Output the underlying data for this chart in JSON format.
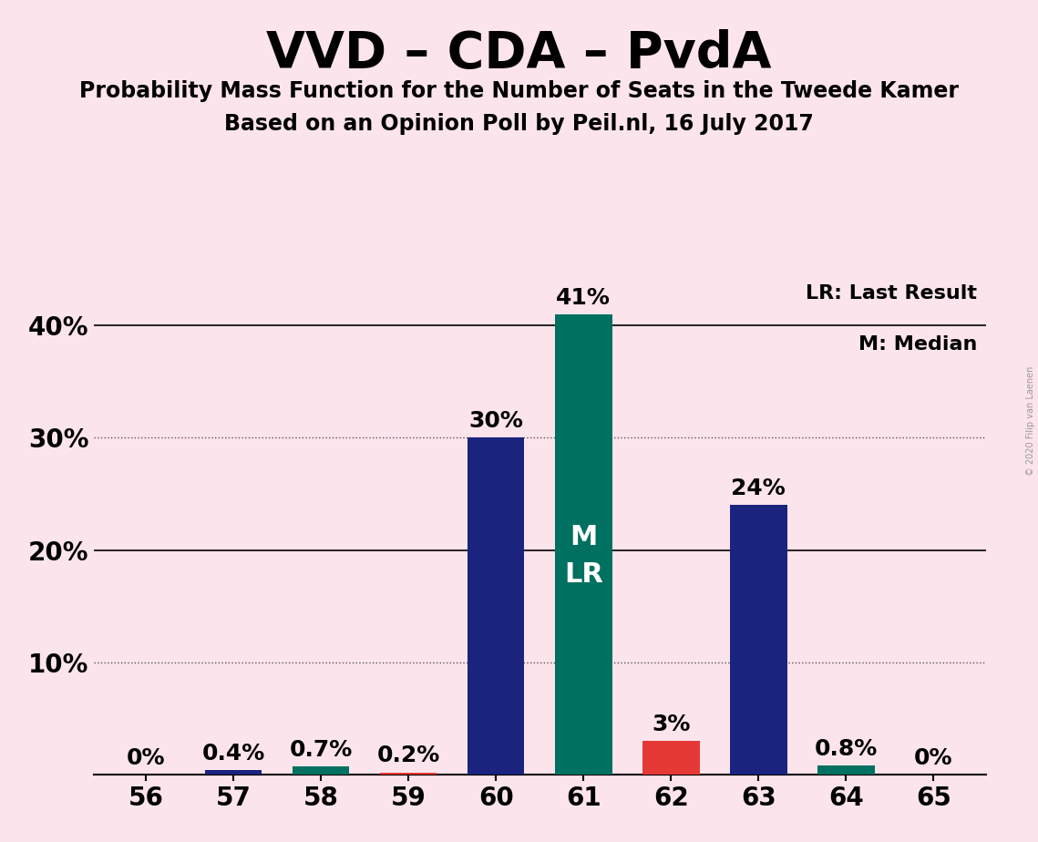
{
  "title": "VVD – CDA – PvdA",
  "subtitle1": "Probability Mass Function for the Number of Seats in the Tweede Kamer",
  "subtitle2": "Based on an Opinion Poll by Peil.nl, 16 July 2017",
  "copyright": "© 2020 Filip van Laenen",
  "categories": [
    56,
    57,
    58,
    59,
    60,
    61,
    62,
    63,
    64,
    65
  ],
  "values": [
    0.0,
    0.4,
    0.7,
    0.2,
    30.0,
    41.0,
    3.0,
    24.0,
    0.8,
    0.0
  ],
  "bar_colors": [
    "#1a237e",
    "#1a237e",
    "#007060",
    "#e53935",
    "#1a237e",
    "#007060",
    "#e53935",
    "#1a237e",
    "#007060",
    "#1a237e"
  ],
  "background_color": "#fce4ec",
  "ylim": [
    0,
    45
  ],
  "yticks": [
    0,
    10,
    20,
    30,
    40
  ],
  "ytick_labels": [
    "",
    "10%",
    "20%",
    "30%",
    "40%"
  ],
  "dotted_lines": [
    10,
    30
  ],
  "solid_lines": [
    20,
    40
  ],
  "legend_lr": "LR: Last Result",
  "legend_m": "M: Median",
  "bar_label_fontsize": 18,
  "title_fontsize": 40,
  "subtitle_fontsize": 17,
  "axis_tick_fontsize": 20,
  "ytick_label_fontsize": 20,
  "ml_label_seat": 61,
  "ml_label_text": "M\nLR",
  "note_fontsize": 7
}
